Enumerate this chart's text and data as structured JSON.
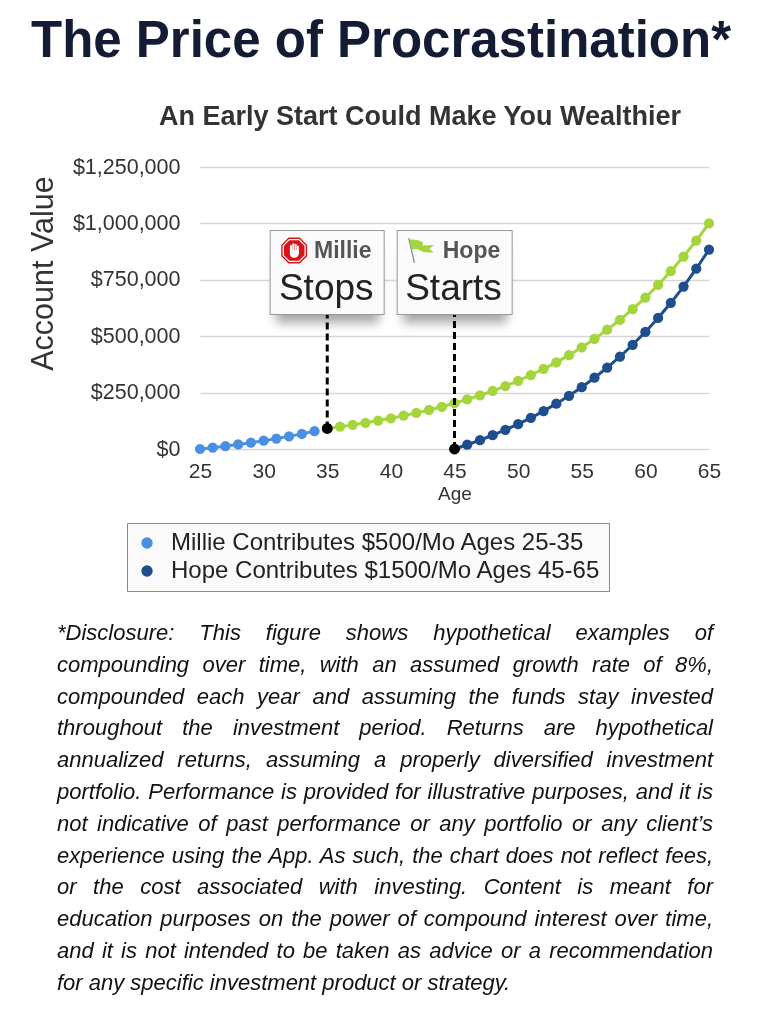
{
  "chart_data": {
    "type": "line",
    "title": "The Price of Procrastination*",
    "subtitle": "An Early Start Could Make You Wealthier",
    "xlabel": "Age",
    "ylabel": "Account Value",
    "xlim": [
      25,
      65
    ],
    "xticks": [
      25,
      30,
      35,
      40,
      45,
      50,
      55,
      60,
      65
    ],
    "ylim": [
      0,
      1250000
    ],
    "yticks": [
      {
        "value": 0,
        "label": "$0"
      },
      {
        "value": 250000,
        "label": "$250,000"
      },
      {
        "value": 500000,
        "label": "$500,000"
      },
      {
        "value": 750000,
        "label": "$750,000"
      },
      {
        "value": 1000000,
        "label": "$1,000,000"
      },
      {
        "value": 1250000,
        "label": "$1,250,000"
      }
    ],
    "grid": "y",
    "marker": "circle",
    "legend": "bottom",
    "series": [
      {
        "name": "Millie Contributes $500/Mo Ages 25-35",
        "color": "#4a90e2",
        "x": [
          25,
          26,
          27,
          28,
          29,
          30,
          31,
          32,
          33,
          34
        ],
        "values": [
          0,
          6000,
          13000,
          20000,
          28000,
          37000,
          46000,
          56000,
          67000,
          79000
        ]
      },
      {
        "color": "#a4d53c",
        "x": [
          35,
          36,
          37,
          38,
          39,
          40,
          41,
          42,
          43,
          44,
          45,
          46,
          47,
          48,
          49,
          50,
          51,
          52,
          53,
          54,
          55,
          56,
          57,
          58,
          59,
          60,
          61,
          62,
          63,
          64,
          65
        ],
        "values": [
          91000,
          99000,
          107000,
          116000,
          126000,
          136000,
          148000,
          160000,
          173000,
          187000,
          203000,
          220000,
          238000,
          258000,
          279000,
          302000,
          328000,
          355000,
          384000,
          416000,
          451000,
          488000,
          529000,
          572000,
          620000,
          671000,
          727000,
          788000,
          853000,
          924000,
          1000000
        ],
        "colors": [
          "#000000",
          "#a4d53c",
          "#a4d53c",
          "#a4d53c",
          "#a4d53c",
          "#a4d53c",
          "#a4d53c",
          "#a4d53c",
          "#a4d53c",
          "#a4d53c",
          "#a4d53c",
          "#a4d53c",
          "#a4d53c",
          "#a4d53c",
          "#a4d53c",
          "#a4d53c",
          "#a4d53c",
          "#a4d53c",
          "#a4d53c",
          "#a4d53c",
          "#a4d53c",
          "#a4d53c",
          "#a4d53c",
          "#a4d53c",
          "#a4d53c",
          "#a4d53c",
          "#a4d53c",
          "#a4d53c",
          "#a4d53c",
          "#a4d53c",
          "#a4d53c"
        ]
      },
      {
        "name": "Hope Contributes $1500/Mo Ages 45-65",
        "color": "#1f4e8f",
        "x": [
          45,
          46,
          47,
          48,
          49,
          50,
          51,
          52,
          53,
          54,
          55,
          56,
          57,
          58,
          59,
          60,
          61,
          62,
          63,
          64,
          65
        ],
        "values": [
          0,
          19000,
          39000,
          61000,
          85000,
          110000,
          138000,
          168000,
          201000,
          236000,
          274000,
          316000,
          361000,
          409000,
          462000,
          519000,
          581000,
          648000,
          720000,
          799000,
          884000
        ],
        "colors": [
          "#000000",
          "#1f4e8f",
          "#1f4e8f",
          "#1f4e8f",
          "#1f4e8f",
          "#1f4e8f",
          "#1f4e8f",
          "#1f4e8f",
          "#1f4e8f",
          "#1f4e8f",
          "#1f4e8f",
          "#1f4e8f",
          "#1f4e8f",
          "#1f4e8f",
          "#1f4e8f",
          "#1f4e8f",
          "#1f4e8f",
          "#1f4e8f",
          "#1f4e8f",
          "#1f4e8f",
          "#1f4e8f"
        ]
      }
    ],
    "annotations": [
      {
        "text": "Millie\nStops",
        "x": 35,
        "y": 91000
      },
      {
        "text": "Hope\nStarts",
        "x": 45,
        "y": 0
      },
      "*Disclosure: This figure shows hypothetical examples of compounding over time, with an assumed growth rate of 8%, compounded each year and assuming the funds stay invested throughout the investment period. Returns are hypothetical annualized returns, assuming a properly diversified investment portfolio. Performance is provided for illustrative purposes, and it is not indicative of past performance or any portfolio or any client’s experience using the App. As such, the chart does not reflect fees, or the cost associated with investing. Content is meant for education purposes on the power of compound interest over time, and it is not intended to be taken as advice or a recommendation for any specific investment product or strategy."
    ]
  }
}
